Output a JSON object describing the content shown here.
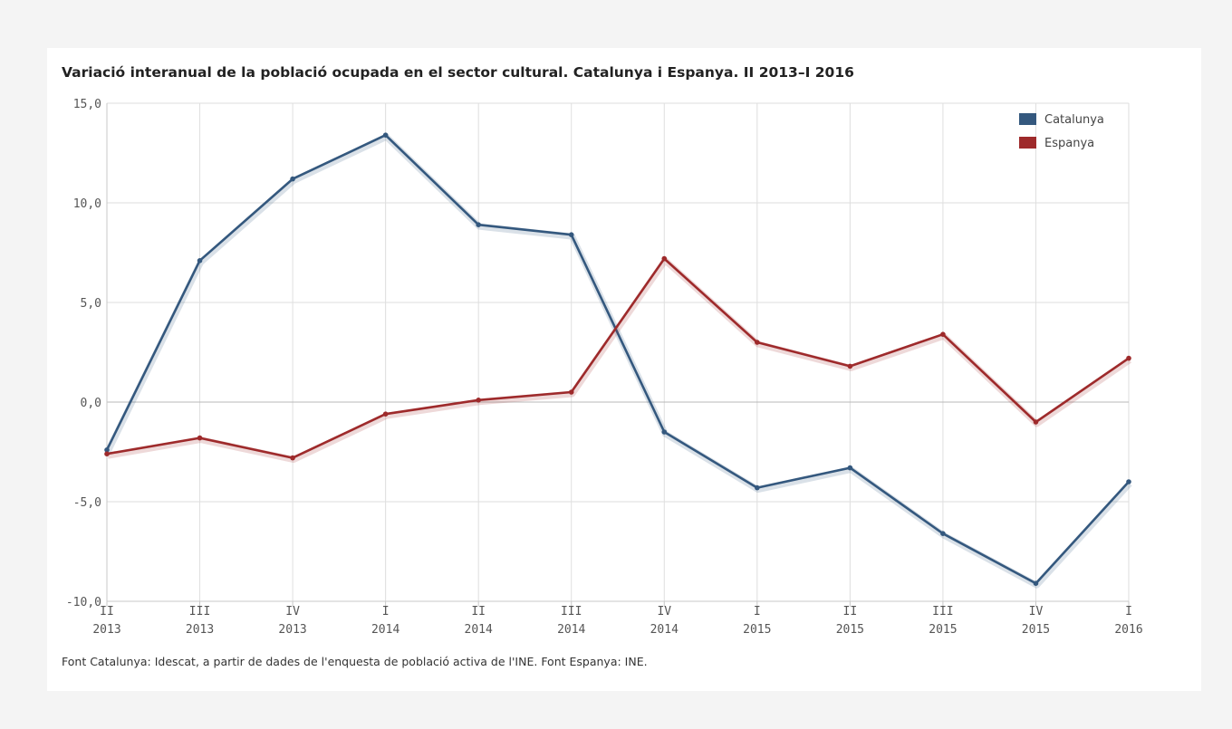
{
  "chart_data": {
    "type": "line",
    "title": "Variació interanual de la població ocupada en el sector cultural. Catalunya i Espanya. II 2013–I 2016",
    "xlabel": "",
    "ylabel": "",
    "categories": [
      [
        "II",
        "2013"
      ],
      [
        "III",
        "2013"
      ],
      [
        "IV",
        "2013"
      ],
      [
        "I",
        "2014"
      ],
      [
        "II",
        "2014"
      ],
      [
        "III",
        "2014"
      ],
      [
        "IV",
        "2014"
      ],
      [
        "I",
        "2015"
      ],
      [
        "II",
        "2015"
      ],
      [
        "III",
        "2015"
      ],
      [
        "IV",
        "2015"
      ],
      [
        "I",
        "2016"
      ]
    ],
    "yticks": [
      "-10,0",
      "-5,0",
      "0,0",
      "5,0",
      "10,0",
      "15,0"
    ],
    "ylim": [
      -10,
      15
    ],
    "grid": true,
    "legend_position": "top-right",
    "series": [
      {
        "name": "Catalunya",
        "color": "#34587e",
        "values": [
          -2.4,
          7.1,
          11.2,
          13.4,
          8.9,
          8.4,
          -1.5,
          -4.3,
          -3.3,
          -6.6,
          -9.1,
          -4.0
        ]
      },
      {
        "name": "Espanya",
        "color": "#9e2a2b",
        "values": [
          -2.6,
          -1.8,
          -2.8,
          -0.6,
          0.1,
          0.5,
          7.2,
          3.0,
          1.8,
          3.4,
          -1.0,
          2.2
        ]
      }
    ]
  },
  "source_note": "Font Catalunya: Idescat, a partir de dades de l'enquesta de població activa de l'INE. Font Espanya: INE."
}
